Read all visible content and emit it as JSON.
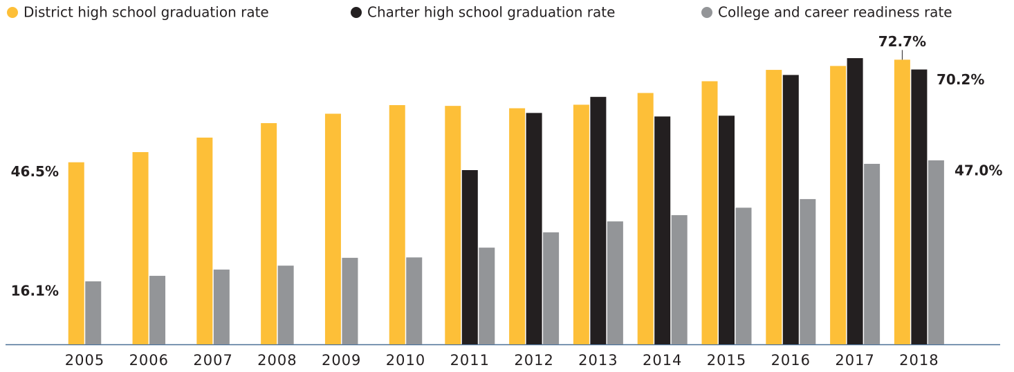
{
  "chart_data": {
    "type": "bar",
    "categories": [
      "2005",
      "2006",
      "2007",
      "2008",
      "2009",
      "2010",
      "2011",
      "2012",
      "2013",
      "2014",
      "2015",
      "2016",
      "2017",
      "2018"
    ],
    "series": [
      {
        "name": "District high school graduation rate",
        "color": "#fdbf38",
        "values": [
          46.5,
          49.1,
          52.8,
          56.5,
          58.9,
          61.1,
          60.9,
          60.3,
          61.2,
          64.2,
          67.2,
          70.1,
          71.1,
          72.7
        ],
        "value_labels": [
          "46.5%",
          null,
          null,
          null,
          null,
          null,
          null,
          null,
          null,
          null,
          null,
          null,
          null,
          "72.7%"
        ]
      },
      {
        "name": "Charter high school graduation rate",
        "color": "#231f20",
        "values": [
          null,
          null,
          null,
          null,
          null,
          null,
          44.5,
          59.1,
          63.2,
          58.2,
          58.4,
          68.8,
          73.1,
          70.2
        ],
        "value_labels": [
          null,
          null,
          null,
          null,
          null,
          null,
          null,
          null,
          null,
          null,
          null,
          null,
          null,
          "70.2%"
        ]
      },
      {
        "name": "College and career readiness rate",
        "color": "#939598",
        "values": [
          16.1,
          17.5,
          19.1,
          20.1,
          22.1,
          22.2,
          24.7,
          28.6,
          31.4,
          33.0,
          34.9,
          37.1,
          46.1,
          47.0
        ],
        "value_labels": [
          "16.1%",
          null,
          null,
          null,
          null,
          null,
          null,
          null,
          null,
          null,
          null,
          null,
          null,
          "47.0%"
        ]
      }
    ],
    "ylim": [
      0,
      80
    ],
    "legend": "top"
  }
}
